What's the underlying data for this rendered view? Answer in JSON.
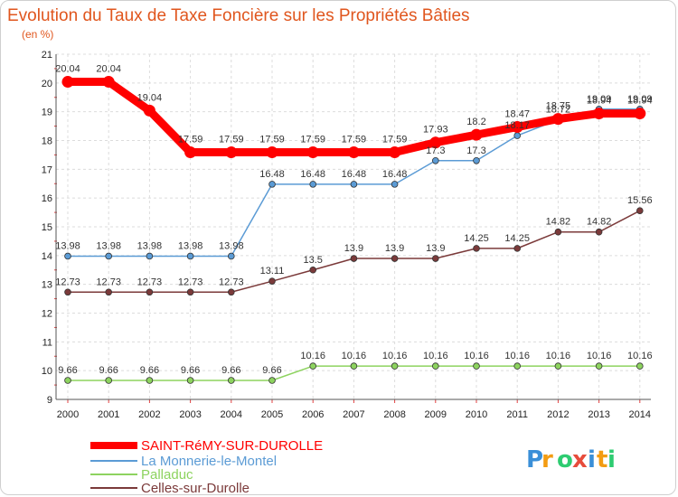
{
  "chart_data": {
    "type": "line",
    "title": "Evolution du Taux de Taxe Foncière sur les Propriétés Bâties",
    "subtitle": "(en %)",
    "x": [
      "2000",
      "2001",
      "2002",
      "2003",
      "2004",
      "2005",
      "2006",
      "2007",
      "2008",
      "2009",
      "2010",
      "2011",
      "2012",
      "2013",
      "2014"
    ],
    "ylim": [
      9,
      21
    ],
    "yticks": [
      9,
      10,
      11,
      12,
      13,
      14,
      15,
      16,
      17,
      18,
      19,
      20,
      21
    ],
    "grid": true,
    "legend_position": "bottom-left",
    "series": [
      {
        "name": "SAINT-RéMY-SUR-DUROLLE",
        "color": "#ff0000",
        "values": [
          20.04,
          20.04,
          19.04,
          17.59,
          17.59,
          17.59,
          17.59,
          17.59,
          17.59,
          17.93,
          18.2,
          18.47,
          18.75,
          18.94,
          18.94
        ],
        "labels": [
          "20.04",
          "20.04",
          "19.04",
          "17.59",
          "17.59",
          "17.59",
          "17.59",
          "17.59",
          "17.59",
          "17.93",
          "18.2",
          "18.47",
          "18.75",
          "18.94",
          "18.94"
        ]
      },
      {
        "name": "La Monnerie-le-Montel",
        "color": "#5b9bd5",
        "values": [
          13.98,
          13.98,
          13.98,
          13.98,
          13.98,
          16.48,
          16.48,
          16.48,
          16.48,
          17.3,
          17.3,
          18.17,
          18.72,
          19.09,
          19.09
        ],
        "labels": [
          "13.98",
          "13.98",
          "13.98",
          "13.98",
          "13.98",
          "16.48",
          "16.48",
          "16.48",
          "16.48",
          "17.3",
          "17.3",
          "18.17",
          "18.72",
          "19.09",
          "19.09"
        ]
      },
      {
        "name": "Palladuc",
        "color": "#8dd35f",
        "values": [
          9.66,
          9.66,
          9.66,
          9.66,
          9.66,
          9.66,
          10.16,
          10.16,
          10.16,
          10.16,
          10.16,
          10.16,
          10.16,
          10.16,
          10.16
        ],
        "labels": [
          "9.66",
          "9.66",
          "9.66",
          "9.66",
          "9.66",
          "9.66",
          "10.16",
          "10.16",
          "10.16",
          "10.16",
          "10.16",
          "10.16",
          "10.16",
          "10.16",
          "10.16"
        ]
      },
      {
        "name": "Celles-sur-Durolle",
        "color": "#7b3a3a",
        "values": [
          12.73,
          12.73,
          12.73,
          12.73,
          12.73,
          13.11,
          13.5,
          13.9,
          13.9,
          13.9,
          14.25,
          14.25,
          14.82,
          14.82,
          15.56
        ],
        "labels": [
          "12.73",
          "12.73",
          "12.73",
          "12.73",
          "12.73",
          "13.11",
          "13.5",
          "13.9",
          "13.9",
          "13.9",
          "14.25",
          "14.25",
          "14.82",
          "14.82",
          "15.56"
        ]
      }
    ]
  },
  "logo": {
    "text": "Proxiti",
    "letters": [
      "P",
      "r",
      "o",
      "x",
      "i",
      "t",
      "i"
    ],
    "colors": [
      "#3a8fd8",
      "#f39c12",
      "#2ecc71",
      "#e74c3c",
      "#3a8fd8",
      "#f39c12",
      "#2ecc71"
    ]
  }
}
